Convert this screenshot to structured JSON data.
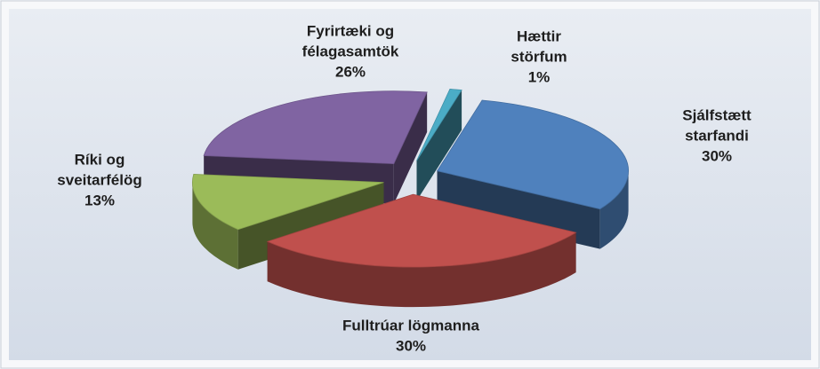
{
  "chart_data": {
    "type": "pie3d",
    "categories": [
      [
        "Hættir",
        "störfum"
      ],
      [
        "Sjálfstætt",
        "starfandi"
      ],
      [
        "Fulltrúar lögmanna"
      ],
      [
        "Ríki og",
        "sveitarfélög"
      ],
      [
        "Fyrirtæki og",
        "félagasamtök"
      ]
    ],
    "values": [
      1,
      30,
      30,
      13,
      26
    ],
    "value_labels": [
      "1%",
      "30%",
      "30%",
      "13%",
      "26%"
    ],
    "colors": [
      "#4bacc6",
      "#4f81bd",
      "#c0504d",
      "#9bbb59",
      "#8064a2"
    ]
  }
}
